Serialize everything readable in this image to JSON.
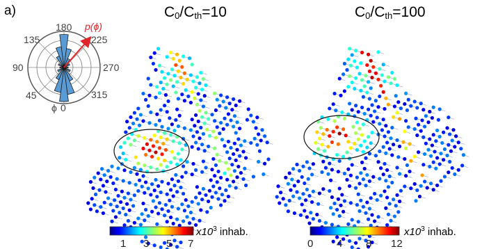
{
  "panel_label": "a)",
  "polar": {
    "angle_labels": [
      "180",
      "225",
      "270",
      "315",
      "0",
      "45",
      "90",
      "135"
    ],
    "phi_symbol": "ϕ",
    "function_label": "p(ϕ)",
    "colors": {
      "wedges": "#5b9bd5",
      "arrow": "#e0242a",
      "grid": "#555555"
    }
  },
  "maps": [
    {
      "title_main": "C",
      "title_sub_1": "0",
      "title_mid": "/C",
      "title_sub_2": "th",
      "title_end": "=10",
      "colorbar_ticks": [
        "1",
        "3",
        "5",
        "7"
      ],
      "unit_prefix": "x10",
      "unit_exp": "3",
      "unit_suffix": " inhab."
    },
    {
      "title_main": "C",
      "title_sub_1": "0",
      "title_mid": "/C",
      "title_sub_2": "th",
      "title_end": "=100",
      "colorbar_ticks": [
        "0",
        "4",
        "8",
        "12"
      ],
      "unit_prefix": "x10",
      "unit_exp": "3",
      "unit_suffix": " inhab."
    }
  ],
  "colormap": "jet"
}
